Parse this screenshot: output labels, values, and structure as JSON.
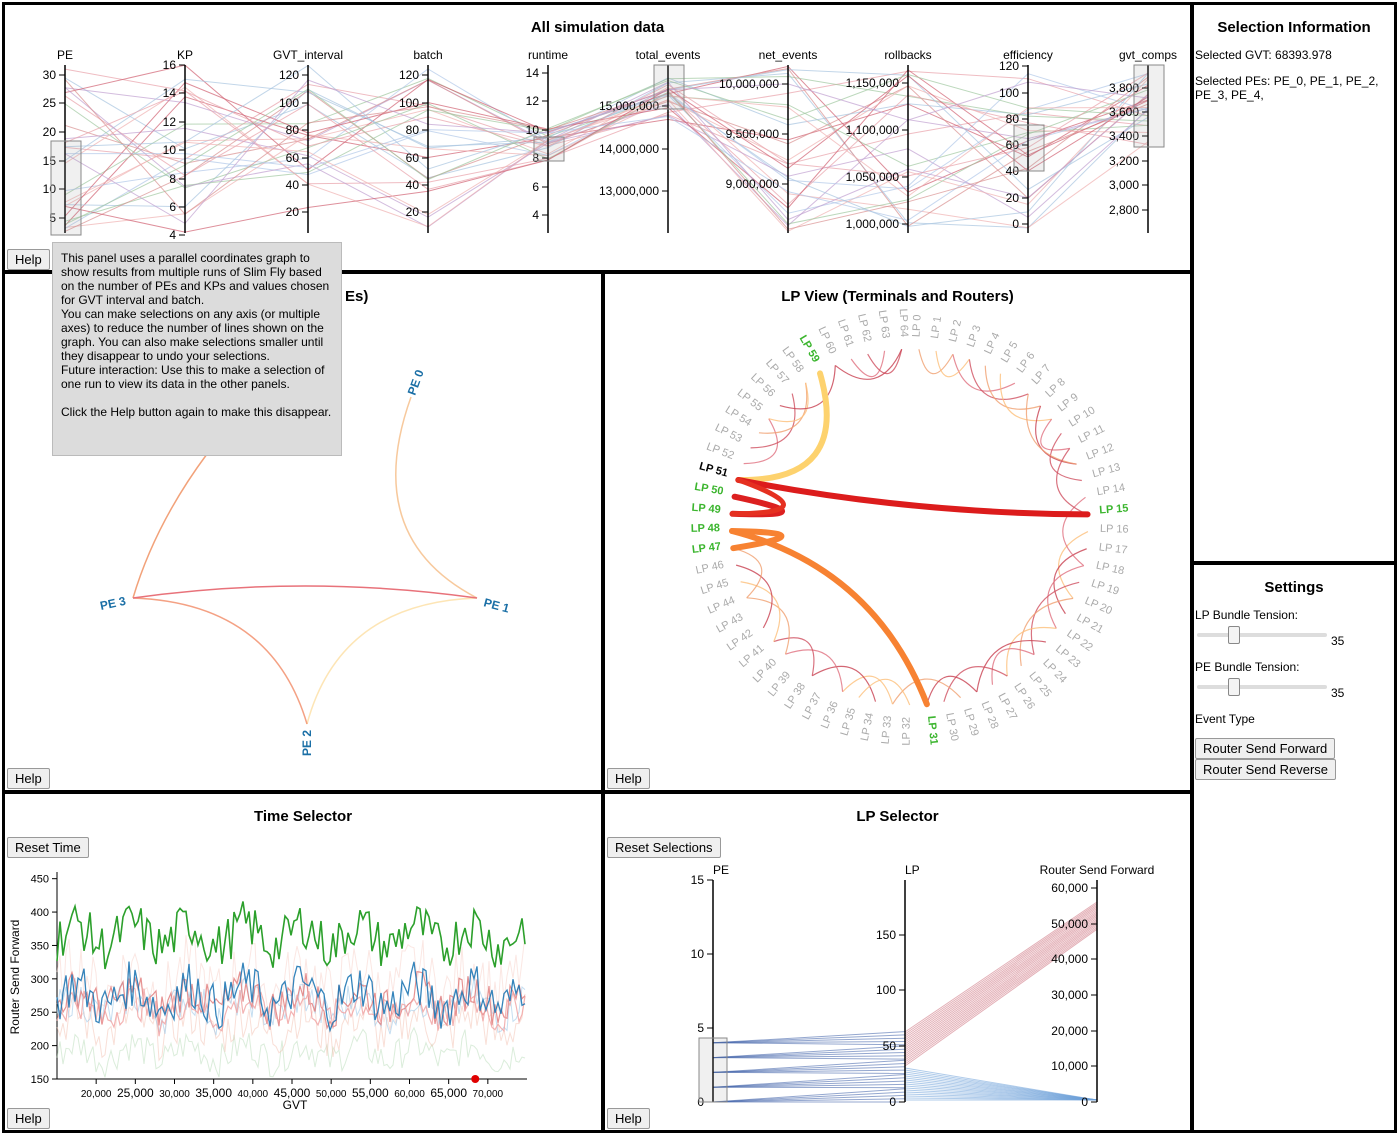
{
  "panels": {
    "sim": {
      "title": "All simulation data",
      "help": "Help"
    },
    "pe": {
      "title_suffix": "Es)",
      "help": "Help"
    },
    "lp": {
      "title": "LP View (Terminals and Routers)",
      "help": "Help"
    },
    "time": {
      "title": "Time Selector",
      "reset": "Reset Time",
      "help": "Help"
    },
    "lpsel": {
      "title": "LP Selector",
      "reset": "Reset Selections",
      "help": "Help"
    }
  },
  "help_tooltip": {
    "p1": "This panel uses a parallel coordinates graph to show results from multiple runs of Slim Fly based on the number of PEs and KPs and values chosen for GVT interval and batch.\nYou can make selections on any axis (or multiple axes) to reduce the number of lines shown on the graph. You can also make selections smaller until they disappear to undo your selections.\nFuture interaction: Use this to make a selection of one run to view its data in the other panels.",
    "p2": "Click the Help button again to make this disappear."
  },
  "selection_info": {
    "title": "Selection Information",
    "gvt": "Selected GVT: 68393.978",
    "pes": "Selected PEs: PE_0, PE_1, PE_2, PE_3, PE_4,"
  },
  "settings": {
    "title": "Settings",
    "lp_tension_label": "LP Bundle Tension:",
    "lp_tension_value": "35",
    "pe_tension_label": "PE Bundle Tension:",
    "pe_tension_value": "35",
    "event_type_label": "Event Type",
    "btn_forward": "Router Send Forward",
    "btn_reverse": "Router Send Reverse"
  },
  "parallel_axes": [
    {
      "name": "PE",
      "ticks": [
        "30",
        "25",
        "20",
        "15",
        "10",
        "5"
      ]
    },
    {
      "name": "KP",
      "ticks": [
        "16",
        "14",
        "12",
        "10",
        "8",
        "6",
        "4"
      ]
    },
    {
      "name": "GVT_interval",
      "ticks": [
        "120",
        "100",
        "80",
        "60",
        "40",
        "20"
      ]
    },
    {
      "name": "batch",
      "ticks": [
        "120",
        "100",
        "80",
        "60",
        "40",
        "20"
      ]
    },
    {
      "name": "runtime",
      "ticks": [
        "14",
        "12",
        "10",
        "8",
        "6",
        "4"
      ]
    },
    {
      "name": "total_events",
      "ticks": [
        "15,000,000",
        "14,000,000",
        "13,000,000"
      ]
    },
    {
      "name": "net_events",
      "ticks": [
        "10,000,000",
        "9,500,000",
        "9,000,000"
      ]
    },
    {
      "name": "rollbacks",
      "ticks": [
        "1,150,000",
        "1,100,000",
        "1,050,000",
        "1,000,000"
      ]
    },
    {
      "name": "efficiency",
      "ticks": [
        "120",
        "100",
        "80",
        "60",
        "40",
        "20",
        "0"
      ]
    },
    {
      "name": "gvt_comps",
      "ticks": [
        "3,800",
        "3,600",
        "3,400",
        "3,200",
        "3,000",
        "2,800"
      ]
    }
  ],
  "pe_nodes": [
    "PE 0",
    "PE 1",
    "PE 2",
    "PE 3"
  ],
  "lp_view": {
    "highlight_labels": [
      "LP 59",
      "LP 51",
      "LP 50",
      "LP 49",
      "LP 48",
      "LP 47",
      "LP 15",
      "LP 31"
    ]
  },
  "time_chart": {
    "ylabel": "Router Send Forward",
    "xlabel": "GVT",
    "yticks": [
      "450",
      "400",
      "350",
      "300",
      "250",
      "200",
      "150"
    ],
    "xticks": [
      "20,000",
      "25,000",
      "30,000",
      "35,000",
      "40,000",
      "45,000",
      "50,000",
      "55,000",
      "60,000",
      "65,000",
      "70,000"
    ]
  },
  "lp_selector_axes": {
    "pe": {
      "name": "PE",
      "ticks": [
        "15",
        "10",
        "5",
        "0"
      ]
    },
    "lp": {
      "name": "LP",
      "ticks": [
        "150",
        "100",
        "50",
        "0"
      ]
    },
    "rsf": {
      "name": "Router Send Forward",
      "ticks": [
        "60,000",
        "50,000",
        "40,000",
        "30,000",
        "20,000",
        "10,000",
        "0"
      ]
    }
  },
  "colors": {
    "pe_label": "#1a6fa6",
    "lp_highlight": "#3bb52e",
    "grey_label": "#aaaaaa",
    "green_series": "#2ca02c",
    "blue_series": "#1f77b4"
  }
}
